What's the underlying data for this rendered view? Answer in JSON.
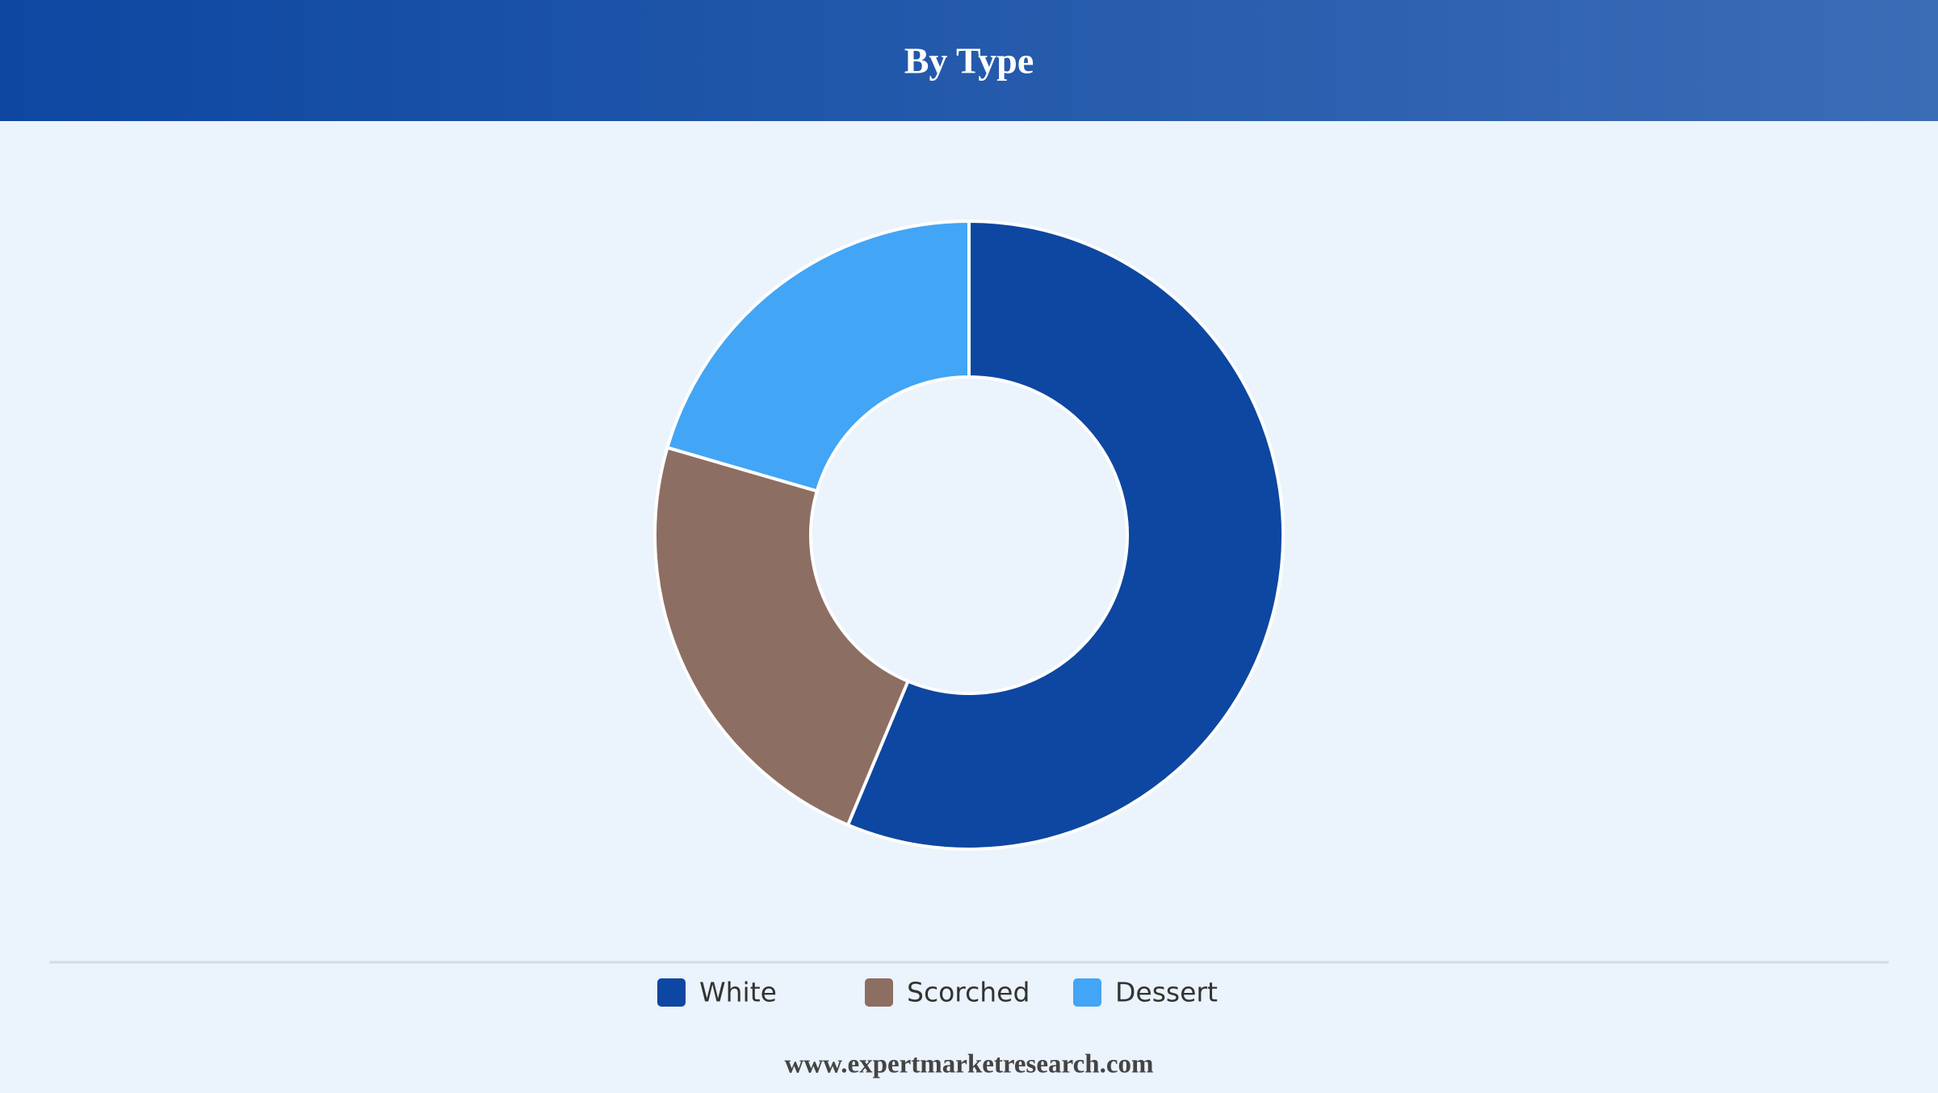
{
  "chart_data": {
    "type": "donut",
    "title": "By Type",
    "categories": [
      "White",
      "Scorched",
      "Dessert"
    ],
    "values": [
      56.3,
      23.2,
      20.5
    ],
    "colors": [
      "#0d47a1",
      "#8d6e63",
      "#42a5f5"
    ],
    "legend": "bottom",
    "source": "www.expertmarketresearch.com"
  }
}
